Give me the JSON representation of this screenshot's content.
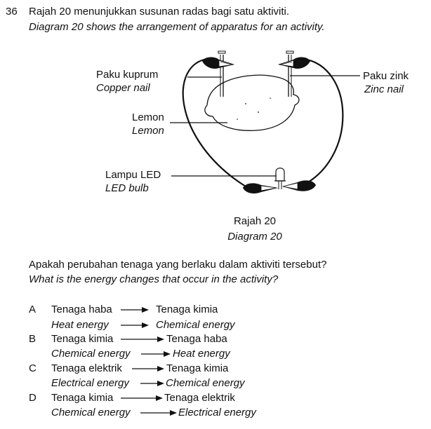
{
  "question": {
    "number": "36",
    "stem_ms": "Rajah 20 menunjukkan susunan radas bagi satu aktiviti.",
    "stem_en": "Diagram 20 shows the arrangement of apparatus for an activity.",
    "prompt_ms": "Apakah perubahan tenaga yang berlaku dalam aktiviti tersebut?",
    "prompt_en": "What is the energy changes that occur in the activity?"
  },
  "diagram": {
    "labels": {
      "copper_ms": "Paku kuprum",
      "copper_en": "Copper nail",
      "zinc_ms": "Paku zink",
      "zinc_en": "Zinc nail",
      "lemon_ms": "Lemon",
      "lemon_en": "Lemon",
      "led_ms": "Lampu LED",
      "led_en": "LED bulb"
    },
    "caption_ms": "Rajah 20",
    "caption_en": "Diagram 20"
  },
  "options": [
    {
      "letter": "A",
      "from_ms": "Tenaga haba",
      "to_ms": "Tenaga kimia",
      "from_en": "Heat energy",
      "to_en": "Chemical energy"
    },
    {
      "letter": "B",
      "from_ms": "Tenaga kimia",
      "to_ms": "Tenaga haba",
      "from_en": "Chemical energy",
      "to_en": "Heat energy"
    },
    {
      "letter": "C",
      "from_ms": "Tenaga elektrik",
      "to_ms": "Tenaga kimia",
      "from_en": "Electrical energy",
      "to_en": "Chemical energy"
    },
    {
      "letter": "D",
      "from_ms": "Tenaga kimia",
      "to_ms": "Tenaga elektrik",
      "from_en": "Chemical energy",
      "to_en": "Electrical energy"
    }
  ]
}
